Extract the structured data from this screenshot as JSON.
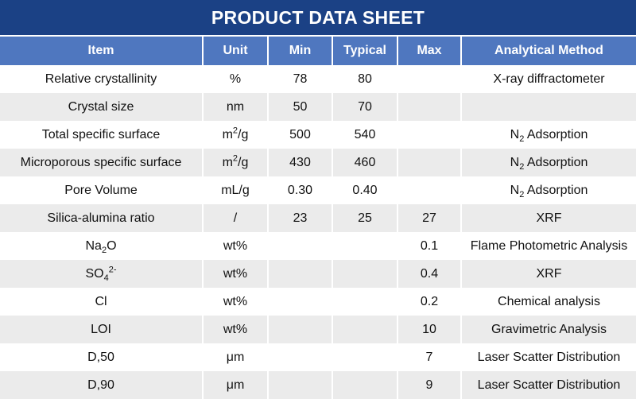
{
  "title": "PRODUCT DATA SHEET",
  "colors": {
    "title_bg": "#1b4185",
    "header_bg": "#4f77bf",
    "alt_row_bg": "#ebebeb"
  },
  "columns": [
    "Item",
    "Unit",
    "Min",
    "Typical",
    "Max",
    "Analytical Method"
  ],
  "rows": [
    [
      "Relative crystallinity",
      "%",
      "78",
      "80",
      "",
      "X-ray diffractometer"
    ],
    [
      "Crystal size",
      "nm",
      "50",
      "70",
      "",
      ""
    ],
    [
      "Total specific surface",
      {
        "t": "m",
        "sup": "2",
        "rest": "/g"
      },
      "500",
      "540",
      "",
      {
        "t": "N",
        "sub": "2",
        "rest": " Adsorption"
      }
    ],
    [
      "Microporous specific surface",
      {
        "t": "m",
        "sup": "2",
        "rest": "/g"
      },
      "430",
      "460",
      "",
      {
        "t": "N",
        "sub": "2",
        "rest": " Adsorption"
      }
    ],
    [
      "Pore Volume",
      "mL/g",
      "0.30",
      "0.40",
      "",
      {
        "t": "N",
        "sub": "2",
        "rest": " Adsorption"
      }
    ],
    [
      "Silica-alumina ratio",
      "/",
      "23",
      "25",
      "27",
      "XRF"
    ],
    [
      {
        "t": "Na",
        "sub": "2",
        "rest": "O"
      },
      "wt%",
      "",
      "",
      "0.1",
      "Flame Photometric Analysis"
    ],
    [
      {
        "t": "SO",
        "sub": "4",
        "sup": "2-"
      },
      "wt%",
      "",
      "",
      "0.4",
      "XRF"
    ],
    [
      "Cl",
      "wt%",
      "",
      "",
      "0.2",
      "Chemical analysis"
    ],
    [
      "LOI",
      "wt%",
      "",
      "",
      "10",
      "Gravimetric Analysis"
    ],
    [
      "D,50",
      "μm",
      "",
      "",
      "7",
      "Laser Scatter Distribution"
    ],
    [
      "D,90",
      "μm",
      "",
      "",
      "9",
      "Laser Scatter Distribution"
    ]
  ]
}
